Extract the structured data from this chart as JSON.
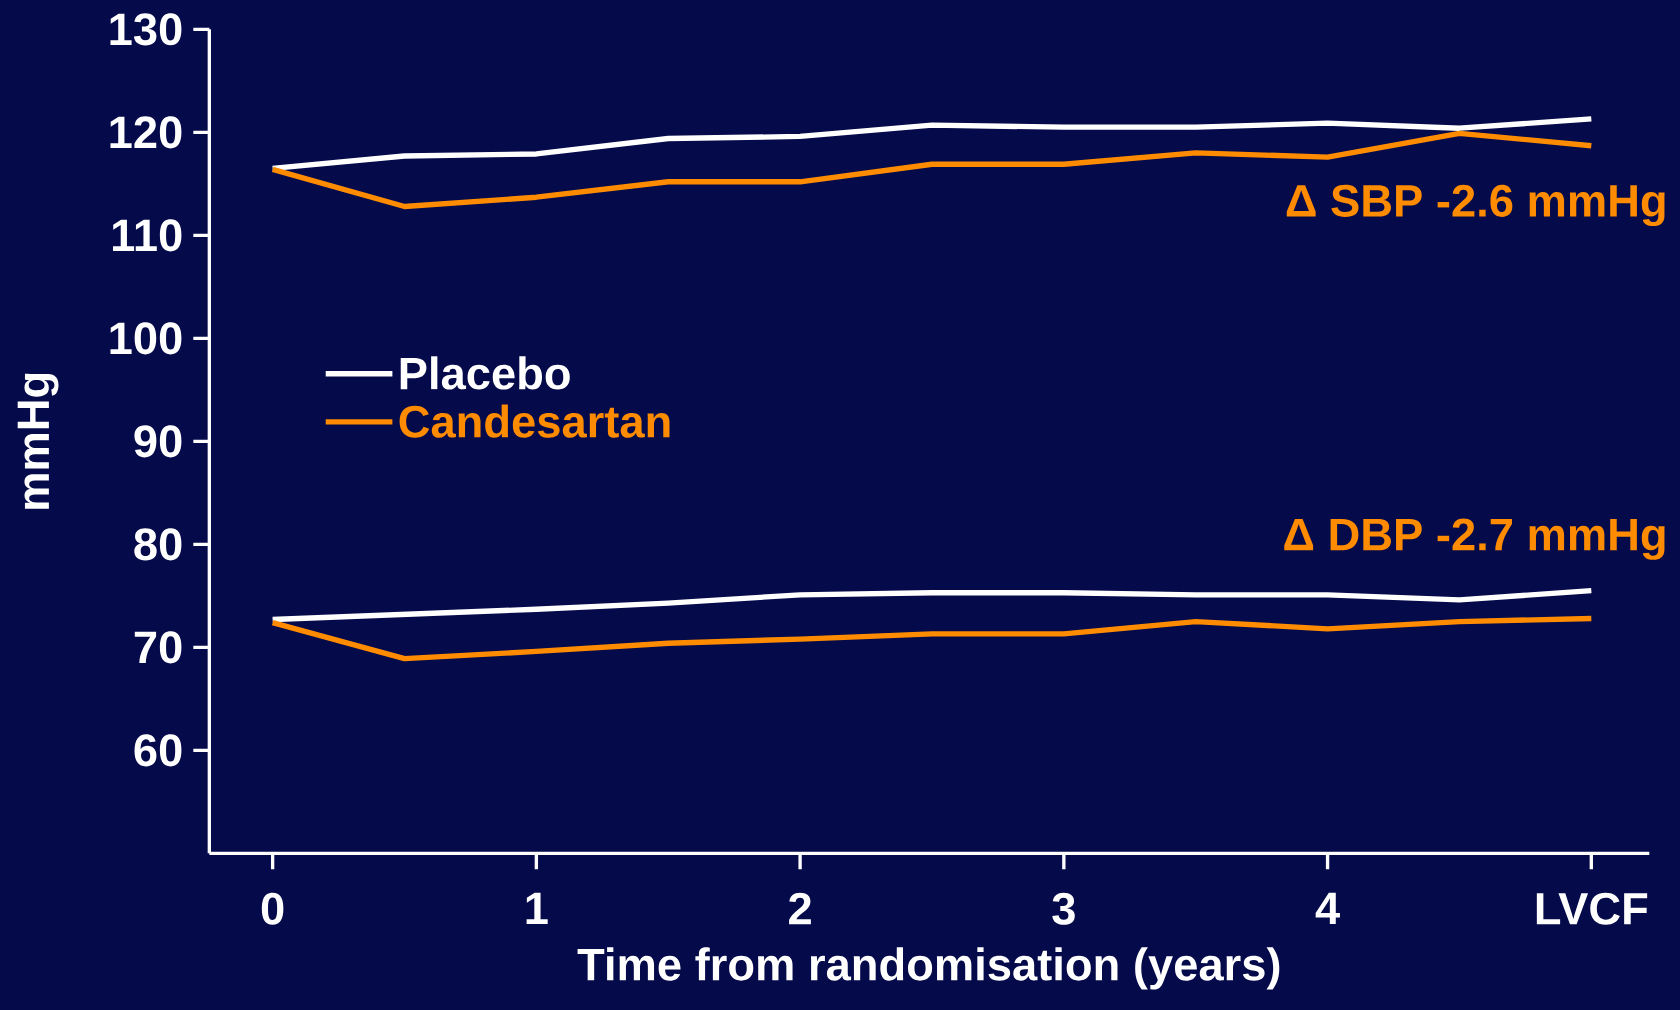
{
  "chart_data": {
    "type": "line",
    "xlabel": "Time from randomisation (years)",
    "ylabel": "mmHg",
    "x": [
      0,
      0.5,
      1,
      1.5,
      2,
      2.5,
      3,
      3.5,
      4,
      4.5,
      5
    ],
    "series": [
      {
        "name": "Placebo",
        "color": "#ffffff",
        "values": [
          116.5,
          117.7,
          117.9,
          119.4,
          119.6,
          120.7,
          120.5,
          120.5,
          120.9,
          120.4,
          121.3
        ]
      },
      {
        "name": "Candesartan",
        "color": "#ff8c00",
        "values": [
          116.4,
          112.8,
          113.7,
          115.2,
          115.2,
          116.9,
          116.9,
          118.0,
          117.6,
          119.9,
          118.7
        ]
      },
      {
        "color": "#ffffff",
        "values": [
          72.7,
          73.2,
          73.7,
          74.3,
          75.1,
          75.3,
          75.3,
          75.1,
          75.1,
          74.6,
          75.5
        ]
      },
      {
        "color": "#ff8c00",
        "values": [
          72.4,
          68.9,
          69.6,
          70.4,
          70.8,
          71.3,
          71.3,
          72.5,
          71.8,
          72.5,
          72.8
        ]
      }
    ],
    "xlim": [
      -0.24,
      5.22
    ],
    "ylim": [
      50,
      130
    ],
    "xticks": [
      0,
      1,
      2,
      3,
      4,
      {
        "value": 5,
        "label": "LVCF"
      }
    ],
    "yticks": [
      60,
      70,
      80,
      90,
      100,
      110,
      120,
      130
    ],
    "legend": "top left",
    "marker": "none",
    "line_style": "solid",
    "annotations": [
      "Δ SBP -2.6 mmHg",
      "Δ DBP -2.7 mmHg"
    ]
  }
}
